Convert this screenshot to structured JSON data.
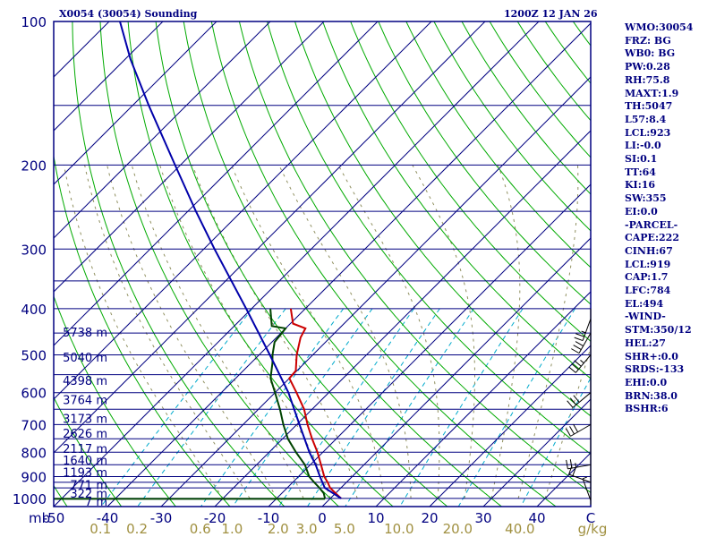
{
  "header": {
    "title": "X0054 (30054) Sounding",
    "datetime": "1200Z 12 JAN 26"
  },
  "indices": [
    "WMO:30054",
    "FRZ: BG",
    "WB0: BG",
    "PW:0.28",
    "RH:75.8",
    "MAXT:1.9",
    "TH:5047",
    "L57:8.4",
    "LCL:923",
    "LI:-0.0",
    "SI:0.1",
    "TT:64",
    "KI:16",
    "SW:355",
    "EI:0.0",
    "-PARCEL-",
    "CAPE:222",
    "CINH:67",
    "LCL:919",
    "CAP:1.7",
    "LFC:784",
    "EL:494",
    "-WIND-",
    "STM:350/12",
    "HEL:27",
    "SHR+:0.0",
    "SRDS:-133",
    "EHI:0.0",
    "BRN:38.0",
    "BSHR:6"
  ],
  "colors": {
    "frame": "#000080",
    "isobar": "#000080",
    "isotherm": "#000080",
    "dry_adiabat": "#00aa00",
    "moist_adiabat": "#909060",
    "mixing_ratio": "#00aacc",
    "temperature": "#cc0000",
    "dewpoint": "#004400",
    "parcel": "#0000aa",
    "axis_text": "#000080",
    "mixing_text": "#a09040",
    "wind": "#000000"
  },
  "chart_data": {
    "type": "line",
    "title": "X0054 (30054) Sounding",
    "xlabel": "°C",
    "ylabel": "mb",
    "x_tick_labels": [
      "-50",
      "-40",
      "-30",
      "-20",
      "-10",
      "0",
      "10",
      "20",
      "30",
      "40",
      "C"
    ],
    "x_tick_values": [
      -50,
      -40,
      -30,
      -20,
      -10,
      0,
      10,
      20,
      30,
      40
    ],
    "x_unit_label": "C",
    "y_corner_label": "mb",
    "isobars": [
      100,
      150,
      200,
      250,
      300,
      350,
      400,
      450,
      500,
      550,
      600,
      650,
      700,
      750,
      800,
      850,
      900,
      925,
      950,
      1000
    ],
    "pressure_tick_labels": [
      "100",
      "200",
      "300",
      "400",
      "500",
      "600",
      "700",
      "800",
      "900",
      "1000"
    ],
    "pressure_tick_values": [
      100,
      200,
      300,
      400,
      500,
      600,
      700,
      800,
      900,
      1000
    ],
    "plim": [
      100,
      1040
    ],
    "tlim_at_base": [
      -50,
      50
    ],
    "mixing_ratio_labels": [
      "0.1",
      "0.2",
      "0.6",
      "1.0",
      "2.0",
      "3.0",
      "5.0",
      "10.0",
      "20.0",
      "40.0",
      "g/kg"
    ],
    "mixing_ratio_values": [
      0.1,
      0.2,
      0.6,
      1.0,
      2.0,
      3.0,
      5.0,
      10.0,
      20.0,
      40.0
    ],
    "mixing_ratio_unit": "g/kg",
    "height_labels": [
      {
        "p": 1014,
        "label": "7 m"
      },
      {
        "p": 975,
        "label": "322 m"
      },
      {
        "p": 935,
        "label": "771 m"
      },
      {
        "p": 880,
        "label": "1193 m"
      },
      {
        "p": 830,
        "label": "1640 m"
      },
      {
        "p": 785,
        "label": "2117 m"
      },
      {
        "p": 730,
        "label": "2626 m"
      },
      {
        "p": 680,
        "label": "3173 m"
      },
      {
        "p": 620,
        "label": "3764 m"
      },
      {
        "p": 565,
        "label": "4398 m"
      },
      {
        "p": 505,
        "label": "5040 m"
      },
      {
        "p": 448,
        "label": "5738 m"
      }
    ],
    "series": [
      {
        "name": "temperature",
        "points": [
          {
            "p": 1000,
            "t": 2.0
          },
          {
            "p": 975,
            "t": 0.0
          },
          {
            "p": 950,
            "t": -2.0
          },
          {
            "p": 925,
            "t": -3.5
          },
          {
            "p": 900,
            "t": -5.2
          },
          {
            "p": 850,
            "t": -8.0
          },
          {
            "p": 800,
            "t": -11.0
          },
          {
            "p": 750,
            "t": -14.5
          },
          {
            "p": 700,
            "t": -18.0
          },
          {
            "p": 650,
            "t": -21.5
          },
          {
            "p": 600,
            "t": -26.0
          },
          {
            "p": 560,
            "t": -30.0
          },
          {
            "p": 540,
            "t": -30.2
          },
          {
            "p": 500,
            "t": -33.0
          },
          {
            "p": 460,
            "t": -35.5
          },
          {
            "p": 440,
            "t": -36.3
          },
          {
            "p": 430,
            "t": -39.5
          },
          {
            "p": 400,
            "t": -42.7
          }
        ]
      },
      {
        "name": "dewpoint",
        "points": [
          {
            "p": 1000,
            "t": -1.0
          },
          {
            "p": 975,
            "t": -2.2
          },
          {
            "p": 950,
            "t": -4.0
          },
          {
            "p": 925,
            "t": -6.0
          },
          {
            "p": 900,
            "t": -8.0
          },
          {
            "p": 850,
            "t": -11.0
          },
          {
            "p": 800,
            "t": -15.0
          },
          {
            "p": 750,
            "t": -19.0
          },
          {
            "p": 700,
            "t": -22.5
          },
          {
            "p": 650,
            "t": -26.0
          },
          {
            "p": 600,
            "t": -30.0
          },
          {
            "p": 560,
            "t": -33.5
          },
          {
            "p": 520,
            "t": -36.0
          },
          {
            "p": 500,
            "t": -37.5
          },
          {
            "p": 470,
            "t": -39.5
          },
          {
            "p": 440,
            "t": -40.0
          },
          {
            "p": 435,
            "t": -43.0
          },
          {
            "p": 400,
            "t": -46.5
          }
        ]
      },
      {
        "name": "parcel",
        "points": [
          {
            "p": 1000,
            "t": 2.0
          },
          {
            "p": 950,
            "t": -3.0
          },
          {
            "p": 900,
            "t": -6.0
          },
          {
            "p": 850,
            "t": -9.0
          },
          {
            "p": 800,
            "t": -12.5
          },
          {
            "p": 700,
            "t": -19.5
          },
          {
            "p": 600,
            "t": -27.5
          },
          {
            "p": 500,
            "t": -38.0
          },
          {
            "p": 400,
            "t": -51.0
          },
          {
            "p": 300,
            "t": -68.0
          },
          {
            "p": 250,
            "t": -78.5
          },
          {
            "p": 200,
            "t": -91.0
          },
          {
            "p": 150,
            "t": -107.0
          },
          {
            "p": 120,
            "t": -119.0
          },
          {
            "p": 100,
            "t": -128.0
          }
        ]
      }
    ],
    "wind_barbs": [
      {
        "p": 1010,
        "dir": 340,
        "speed": 5
      },
      {
        "p": 925,
        "dir": 290,
        "speed": 20
      },
      {
        "p": 850,
        "dir": 260,
        "speed": 25
      },
      {
        "p": 700,
        "dir": 240,
        "speed": 30
      },
      {
        "p": 600,
        "dir": 230,
        "speed": 30
      },
      {
        "p": 500,
        "dir": 220,
        "speed": 35
      },
      {
        "p": 450,
        "dir": 210,
        "speed": 30
      },
      {
        "p": 420,
        "dir": 200,
        "speed": 25
      }
    ]
  }
}
